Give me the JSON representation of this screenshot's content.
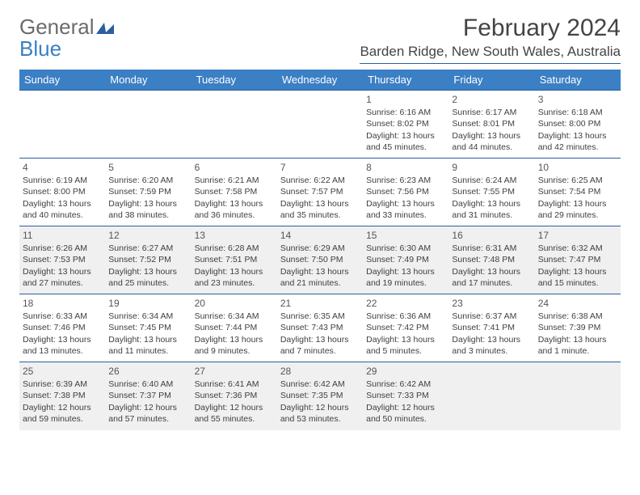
{
  "logo": {
    "part1": "General",
    "part2": "Blue"
  },
  "title": "February 2024",
  "subtitle": "Barden Ridge, New South Wales, Australia",
  "calendar": {
    "headers": [
      "Sunday",
      "Monday",
      "Tuesday",
      "Wednesday",
      "Thursday",
      "Friday",
      "Saturday"
    ],
    "header_bg": "#3b7fc4",
    "header_fg": "#ffffff",
    "border_color": "#2b5f9e",
    "alt_row_bg": "#f0f0f0",
    "weeks": [
      [
        null,
        null,
        null,
        null,
        {
          "n": "1",
          "sr": "6:16 AM",
          "ss": "8:02 PM",
          "dl": "13 hours and 45 minutes."
        },
        {
          "n": "2",
          "sr": "6:17 AM",
          "ss": "8:01 PM",
          "dl": "13 hours and 44 minutes."
        },
        {
          "n": "3",
          "sr": "6:18 AM",
          "ss": "8:00 PM",
          "dl": "13 hours and 42 minutes."
        }
      ],
      [
        {
          "n": "4",
          "sr": "6:19 AM",
          "ss": "8:00 PM",
          "dl": "13 hours and 40 minutes."
        },
        {
          "n": "5",
          "sr": "6:20 AM",
          "ss": "7:59 PM",
          "dl": "13 hours and 38 minutes."
        },
        {
          "n": "6",
          "sr": "6:21 AM",
          "ss": "7:58 PM",
          "dl": "13 hours and 36 minutes."
        },
        {
          "n": "7",
          "sr": "6:22 AM",
          "ss": "7:57 PM",
          "dl": "13 hours and 35 minutes."
        },
        {
          "n": "8",
          "sr": "6:23 AM",
          "ss": "7:56 PM",
          "dl": "13 hours and 33 minutes."
        },
        {
          "n": "9",
          "sr": "6:24 AM",
          "ss": "7:55 PM",
          "dl": "13 hours and 31 minutes."
        },
        {
          "n": "10",
          "sr": "6:25 AM",
          "ss": "7:54 PM",
          "dl": "13 hours and 29 minutes."
        }
      ],
      [
        {
          "n": "11",
          "sr": "6:26 AM",
          "ss": "7:53 PM",
          "dl": "13 hours and 27 minutes."
        },
        {
          "n": "12",
          "sr": "6:27 AM",
          "ss": "7:52 PM",
          "dl": "13 hours and 25 minutes."
        },
        {
          "n": "13",
          "sr": "6:28 AM",
          "ss": "7:51 PM",
          "dl": "13 hours and 23 minutes."
        },
        {
          "n": "14",
          "sr": "6:29 AM",
          "ss": "7:50 PM",
          "dl": "13 hours and 21 minutes."
        },
        {
          "n": "15",
          "sr": "6:30 AM",
          "ss": "7:49 PM",
          "dl": "13 hours and 19 minutes."
        },
        {
          "n": "16",
          "sr": "6:31 AM",
          "ss": "7:48 PM",
          "dl": "13 hours and 17 minutes."
        },
        {
          "n": "17",
          "sr": "6:32 AM",
          "ss": "7:47 PM",
          "dl": "13 hours and 15 minutes."
        }
      ],
      [
        {
          "n": "18",
          "sr": "6:33 AM",
          "ss": "7:46 PM",
          "dl": "13 hours and 13 minutes."
        },
        {
          "n": "19",
          "sr": "6:34 AM",
          "ss": "7:45 PM",
          "dl": "13 hours and 11 minutes."
        },
        {
          "n": "20",
          "sr": "6:34 AM",
          "ss": "7:44 PM",
          "dl": "13 hours and 9 minutes."
        },
        {
          "n": "21",
          "sr": "6:35 AM",
          "ss": "7:43 PM",
          "dl": "13 hours and 7 minutes."
        },
        {
          "n": "22",
          "sr": "6:36 AM",
          "ss": "7:42 PM",
          "dl": "13 hours and 5 minutes."
        },
        {
          "n": "23",
          "sr": "6:37 AM",
          "ss": "7:41 PM",
          "dl": "13 hours and 3 minutes."
        },
        {
          "n": "24",
          "sr": "6:38 AM",
          "ss": "7:39 PM",
          "dl": "13 hours and 1 minute."
        }
      ],
      [
        {
          "n": "25",
          "sr": "6:39 AM",
          "ss": "7:38 PM",
          "dl": "12 hours and 59 minutes."
        },
        {
          "n": "26",
          "sr": "6:40 AM",
          "ss": "7:37 PM",
          "dl": "12 hours and 57 minutes."
        },
        {
          "n": "27",
          "sr": "6:41 AM",
          "ss": "7:36 PM",
          "dl": "12 hours and 55 minutes."
        },
        {
          "n": "28",
          "sr": "6:42 AM",
          "ss": "7:35 PM",
          "dl": "12 hours and 53 minutes."
        },
        {
          "n": "29",
          "sr": "6:42 AM",
          "ss": "7:33 PM",
          "dl": "12 hours and 50 minutes."
        },
        null,
        null
      ]
    ]
  },
  "labels": {
    "sunrise": "Sunrise: ",
    "sunset": "Sunset: ",
    "daylight": "Daylight: "
  }
}
